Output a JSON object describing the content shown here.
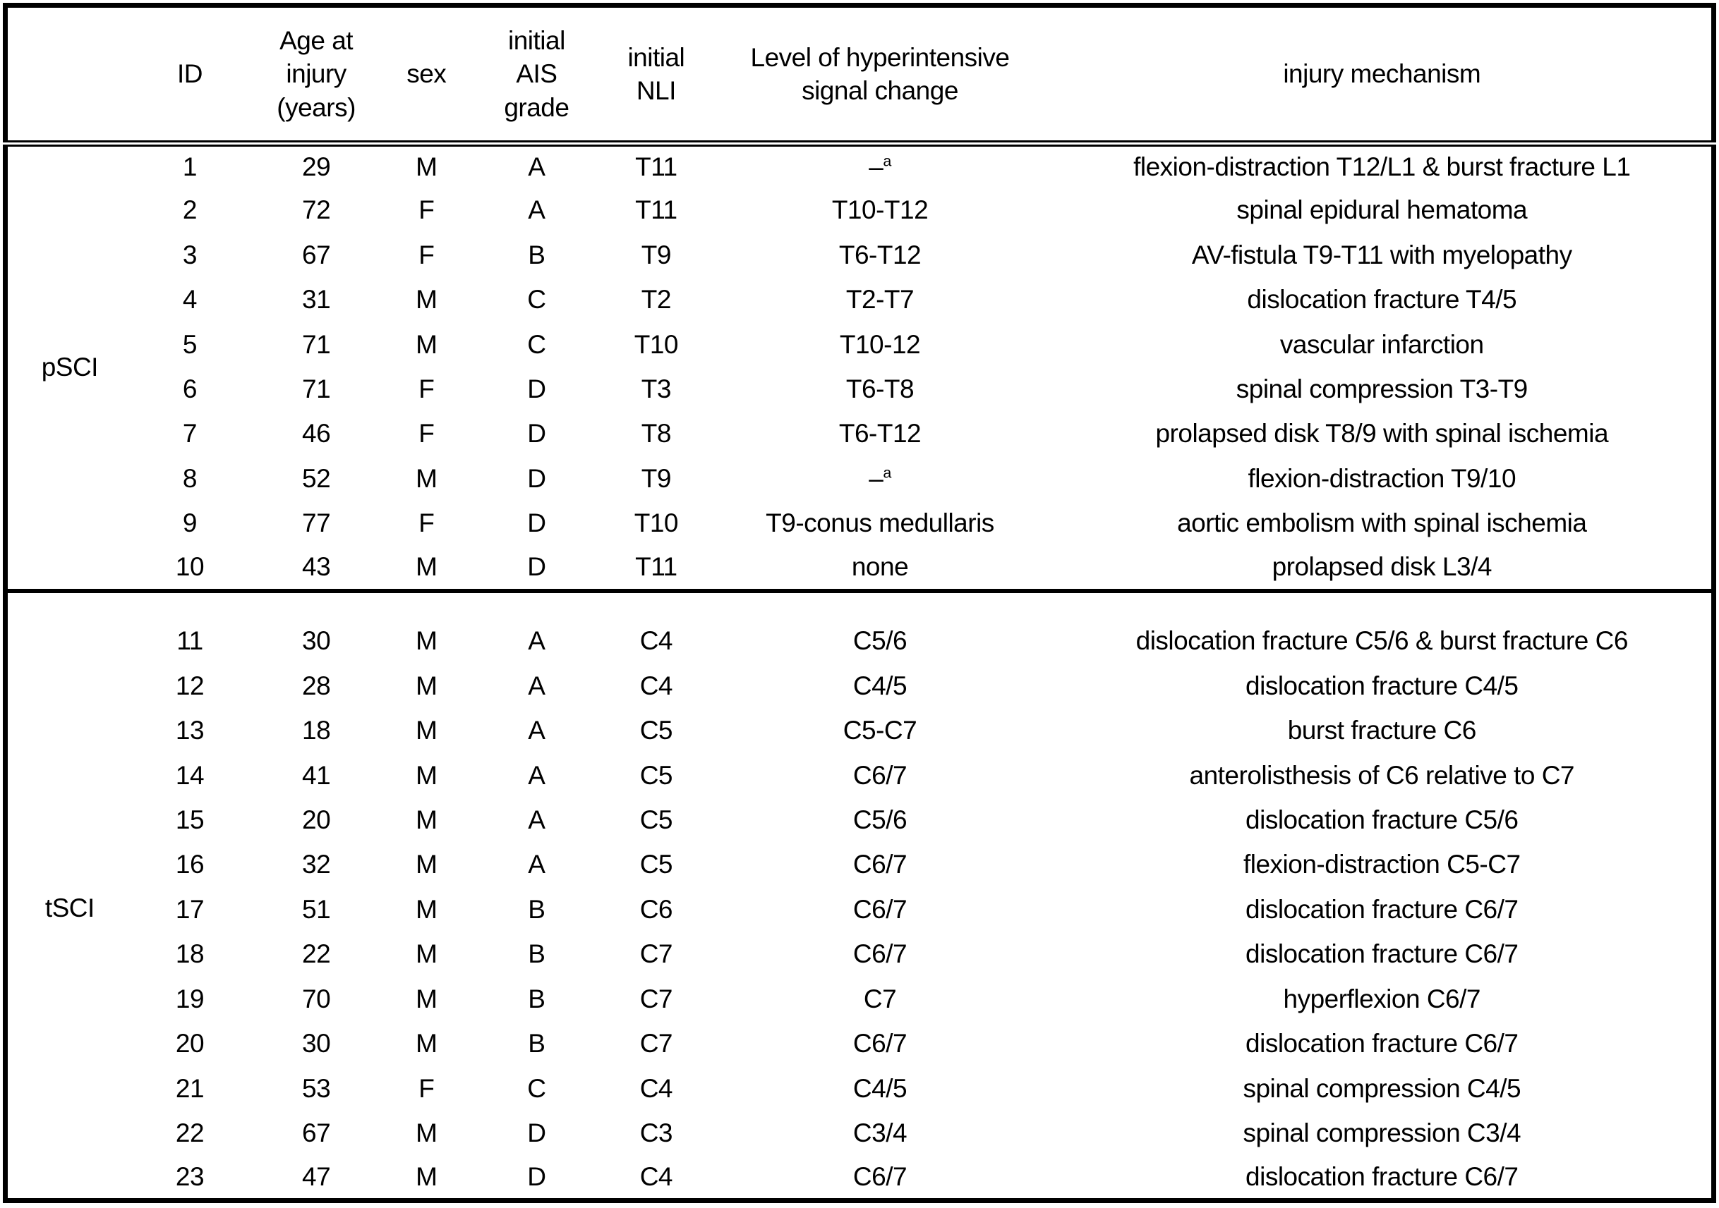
{
  "table": {
    "headers": [
      "",
      "ID",
      "Age at\ninjury\n(years)",
      "sex",
      "initial\nAIS\ngrade",
      "initial\nNLI",
      "Level of hyperintensive\nsignal change",
      "injury mechanism"
    ],
    "footnote_marker": "a",
    "groups": [
      {
        "key": "psci",
        "label": "pSCI",
        "spacer": false,
        "rows": [
          {
            "id": "1",
            "age": "29",
            "sex": "M",
            "ais": "A",
            "nli": "T11",
            "level": "–",
            "level_sup": "a",
            "mechanism": "flexion-distraction T12/L1 & burst fracture L1"
          },
          {
            "id": "2",
            "age": "72",
            "sex": "F",
            "ais": "A",
            "nli": "T11",
            "level": "T10-T12",
            "mechanism": "spinal epidural hematoma"
          },
          {
            "id": "3",
            "age": "67",
            "sex": "F",
            "ais": "B",
            "nli": "T9",
            "level": "T6-T12",
            "mechanism": "AV-fistula T9-T11 with myelopathy"
          },
          {
            "id": "4",
            "age": "31",
            "sex": "M",
            "ais": "C",
            "nli": "T2",
            "level": "T2-T7",
            "mechanism": "dislocation fracture T4/5"
          },
          {
            "id": "5",
            "age": "71",
            "sex": "M",
            "ais": "C",
            "nli": "T10",
            "level": "T10-12",
            "mechanism": "vascular infarction"
          },
          {
            "id": "6",
            "age": "71",
            "sex": "F",
            "ais": "D",
            "nli": "T3",
            "level": "T6-T8",
            "mechanism": "spinal compression T3-T9"
          },
          {
            "id": "7",
            "age": "46",
            "sex": "F",
            "ais": "D",
            "nli": "T8",
            "level": "T6-T12",
            "mechanism": "prolapsed disk T8/9 with spinal ischemia"
          },
          {
            "id": "8",
            "age": "52",
            "sex": "M",
            "ais": "D",
            "nli": "T9",
            "level": "–",
            "level_sup": "a",
            "mechanism": "flexion-distraction T9/10"
          },
          {
            "id": "9",
            "age": "77",
            "sex": "F",
            "ais": "D",
            "nli": "T10",
            "level": "T9-conus medullaris",
            "mechanism": "aortic embolism with spinal ischemia"
          },
          {
            "id": "10",
            "age": "43",
            "sex": "M",
            "ais": "D",
            "nli": "T11",
            "level": "none",
            "mechanism": "prolapsed disk L3/4"
          }
        ]
      },
      {
        "key": "tsci",
        "label": "tSCI",
        "spacer": true,
        "rows": [
          {
            "id": "11",
            "age": "30",
            "sex": "M",
            "ais": "A",
            "nli": "C4",
            "level": "C5/6",
            "mechanism": "dislocation fracture C5/6 & burst fracture C6"
          },
          {
            "id": "12",
            "age": "28",
            "sex": "M",
            "ais": "A",
            "nli": "C4",
            "level": "C4/5",
            "mechanism": "dislocation fracture C4/5"
          },
          {
            "id": "13",
            "age": "18",
            "sex": "M",
            "ais": "A",
            "nli": "C5",
            "level": "C5-C7",
            "mechanism": "burst fracture C6"
          },
          {
            "id": "14",
            "age": "41",
            "sex": "M",
            "ais": "A",
            "nli": "C5",
            "level": "C6/7",
            "mechanism": "anterolisthesis of C6 relative to C7"
          },
          {
            "id": "15",
            "age": "20",
            "sex": "M",
            "ais": "A",
            "nli": "C5",
            "level": "C5/6",
            "mechanism": "dislocation fracture C5/6"
          },
          {
            "id": "16",
            "age": "32",
            "sex": "M",
            "ais": "A",
            "nli": "C5",
            "level": "C6/7",
            "mechanism": "flexion-distraction C5-C7"
          },
          {
            "id": "17",
            "age": "51",
            "sex": "M",
            "ais": "B",
            "nli": "C6",
            "level": "C6/7",
            "mechanism": "dislocation fracture C6/7"
          },
          {
            "id": "18",
            "age": "22",
            "sex": "M",
            "ais": "B",
            "nli": "C7",
            "level": "C6/7",
            "mechanism": "dislocation fracture C6/7"
          },
          {
            "id": "19",
            "age": "70",
            "sex": "M",
            "ais": "B",
            "nli": "C7",
            "level": "C7",
            "mechanism": "hyperflexion C6/7"
          },
          {
            "id": "20",
            "age": "30",
            "sex": "M",
            "ais": "B",
            "nli": "C7",
            "level": "C6/7",
            "mechanism": "dislocation fracture C6/7"
          },
          {
            "id": "21",
            "age": "53",
            "sex": "F",
            "ais": "C",
            "nli": "C4",
            "level": "C4/5",
            "mechanism": "spinal compression C4/5"
          },
          {
            "id": "22",
            "age": "67",
            "sex": "M",
            "ais": "D",
            "nli": "C3",
            "level": "C3/4",
            "mechanism": "spinal compression C3/4"
          },
          {
            "id": "23",
            "age": "47",
            "sex": "M",
            "ais": "D",
            "nli": "C4",
            "level": "C6/7",
            "mechanism": "dislocation fracture C6/7"
          }
        ]
      }
    ]
  }
}
